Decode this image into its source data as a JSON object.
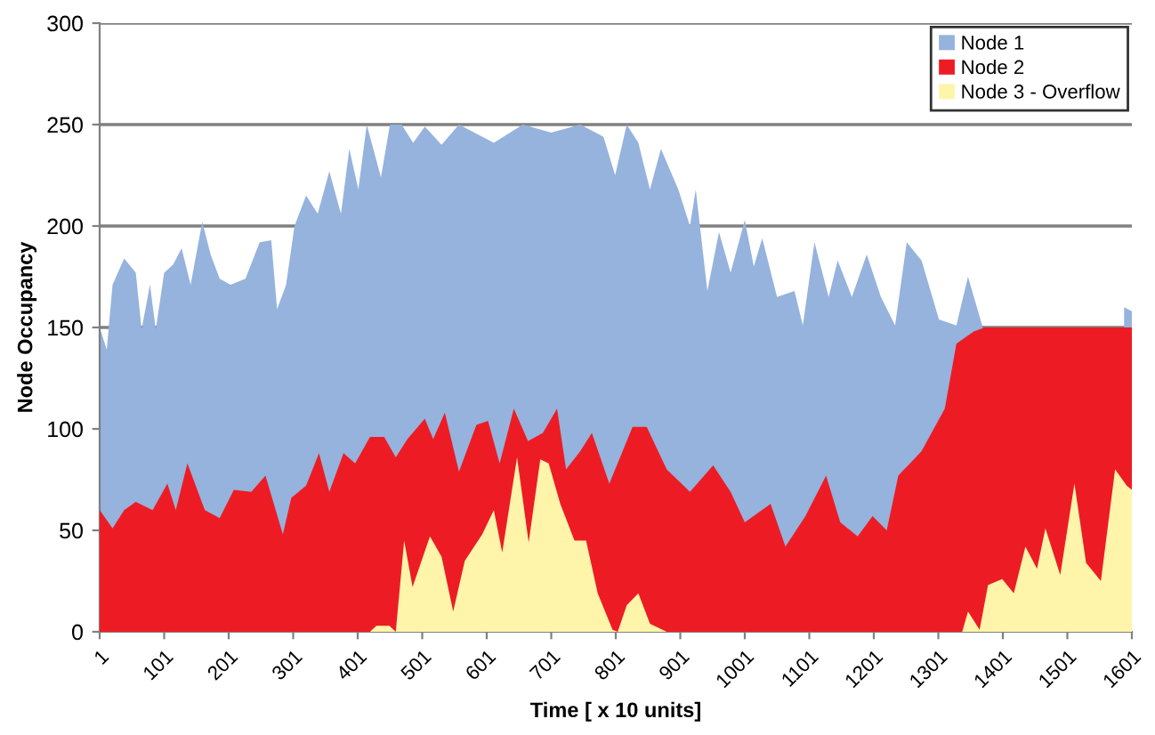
{
  "chart_data": {
    "type": "area",
    "xlabel": "Time [ x 10 units]",
    "ylabel": "Node Occupancy",
    "xlim": [
      1,
      1601
    ],
    "ylim": [
      0,
      300
    ],
    "xticks": [
      1,
      101,
      201,
      301,
      401,
      501,
      601,
      701,
      801,
      901,
      1001,
      1101,
      1201,
      1301,
      1401,
      1501,
      1601
    ],
    "yticks": [
      0,
      50,
      100,
      150,
      200,
      250,
      300
    ],
    "grid": "y",
    "legend": "top right",
    "series": [
      {
        "name": "Node 1",
        "color": "#95b3dc",
        "x": [
          1,
          12,
          21,
          39,
          57,
          66,
          79,
          88,
          101,
          115,
          128,
          142,
          160,
          173,
          187,
          204,
          227,
          249,
          267,
          276,
          290,
          303,
          321,
          339,
          357,
          375,
          388,
          402,
          415,
          437,
          451,
          469,
          487,
          505,
          531,
          558,
          612,
          657,
          701,
          746,
          782,
          800,
          818,
          836,
          854,
          871,
          898,
          916,
          925,
          943,
          961,
          979,
          1001,
          1015,
          1028,
          1051,
          1078,
          1091,
          1109,
          1131,
          1145,
          1167,
          1190,
          1212,
          1234,
          1252,
          1275,
          1302,
          1329,
          1347,
          1369,
          1380,
          1585,
          1589,
          1601
        ],
        "values": [
          150,
          139,
          171,
          184,
          177,
          149,
          171,
          149,
          177,
          181,
          189,
          171,
          202,
          186,
          174,
          171,
          174,
          192,
          193,
          159,
          171,
          200,
          215,
          206,
          227,
          206,
          238,
          218,
          250,
          224,
          250,
          250,
          241,
          249,
          240,
          250,
          241,
          250,
          246,
          250,
          244,
          225,
          250,
          241,
          218,
          238,
          218,
          200,
          218,
          168,
          197,
          177,
          203,
          180,
          194,
          165,
          168,
          151,
          192,
          165,
          183,
          165,
          186,
          165,
          151,
          192,
          183,
          154,
          151,
          175,
          151,
          null,
          null,
          160,
          158
        ]
      },
      {
        "name": "Node 2",
        "color": "#ed1c24",
        "x": [
          1,
          21,
          39,
          57,
          83,
          106,
          119,
          137,
          164,
          187,
          209,
          236,
          258,
          285,
          298,
          321,
          341,
          357,
          379,
          397,
          420,
          442,
          460,
          478,
          505,
          518,
          536,
          558,
          585,
          603,
          621,
          643,
          665,
          688,
          710,
          724,
          746,
          764,
          791,
          827,
          849,
          880,
          916,
          952,
          979,
          1001,
          1041,
          1064,
          1095,
          1127,
          1149,
          1176,
          1199,
          1221,
          1239,
          1275,
          1311,
          1329,
          1356,
          1373,
          1601
        ],
        "values": [
          60,
          51,
          60,
          64,
          60,
          73,
          60,
          83,
          60,
          56,
          70,
          69,
          77,
          48,
          66,
          72,
          88,
          69,
          88,
          83,
          96,
          96,
          86,
          95,
          105,
          95,
          108,
          79,
          102,
          104,
          83,
          110,
          94,
          98,
          110,
          80,
          89,
          98,
          73,
          101,
          101,
          80,
          69,
          82,
          69,
          54,
          63,
          42,
          57,
          77,
          54,
          47,
          57,
          50,
          77,
          89,
          110,
          142,
          148,
          150,
          150
        ]
      },
      {
        "name": "Node 3 - Overflow",
        "color": "#fff5aa",
        "x": [
          1,
          420,
          430,
          450,
          460,
          473,
          486,
          513,
          531,
          549,
          567,
          594,
          612,
          625,
          648,
          666,
          684,
          697,
          715,
          737,
          755,
          773,
          796,
          804,
          818,
          836,
          854,
          880,
          1338,
          1347,
          1365,
          1378,
          1400,
          1418,
          1436,
          1454,
          1467,
          1490,
          1512,
          1530,
          1553,
          1575,
          1593,
          1601
        ],
        "values": [
          0,
          0,
          3,
          3,
          0,
          45,
          22,
          47,
          37,
          10,
          35,
          48,
          60,
          39,
          86,
          44,
          85,
          83,
          63,
          45,
          45,
          19,
          1,
          0,
          13,
          19,
          4,
          0,
          0,
          10,
          1,
          23,
          26,
          19,
          42,
          31,
          51,
          28,
          73,
          34,
          25,
          80,
          72,
          70
        ]
      }
    ]
  }
}
